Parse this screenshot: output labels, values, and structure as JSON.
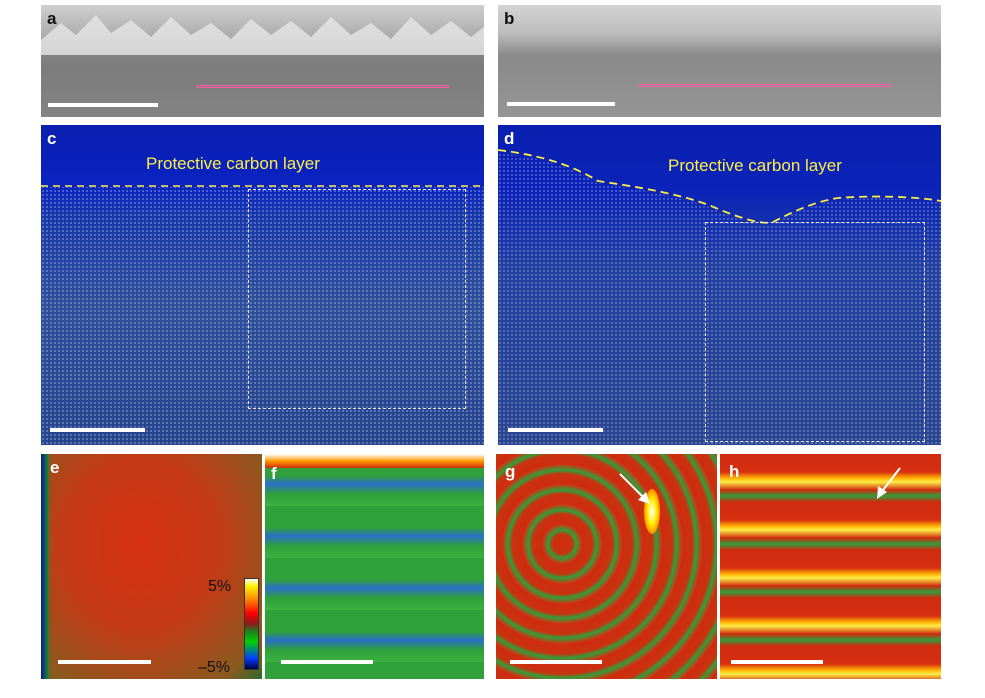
{
  "panels": {
    "a": {
      "label": "a"
    },
    "b": {
      "label": "b"
    },
    "c": {
      "label": "c",
      "annotation": "Protective carbon layer"
    },
    "d": {
      "label": "d",
      "annotation": "Protective carbon layer"
    },
    "e": {
      "label": "e"
    },
    "f": {
      "label": "f"
    },
    "g": {
      "label": "g"
    },
    "h": {
      "label": "h"
    }
  },
  "colorbar": {
    "max_label": "5%",
    "min_label": "–5%"
  },
  "colors": {
    "sem_gray": "#8a8a8a",
    "stem_blue": "#0a1e9a",
    "strain_red": "#d02a10",
    "strain_green": "#2fa03a",
    "highlight": "#ffee44",
    "roi_line": "#ff5aa8"
  }
}
